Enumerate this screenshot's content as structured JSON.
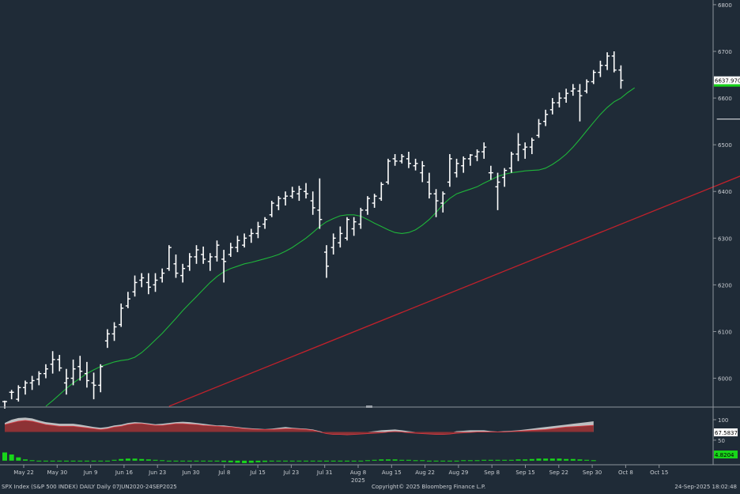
{
  "footer": {
    "left": "SPX Index (S&P 500 INDEX) DAILY  Daily 07JUN2020-24SEP2025",
    "center": "Copyright© 2025 Bloomberg Finance L.P.",
    "right": "24-Sep-2025 18:02:48",
    "year": "2025"
  },
  "colors": {
    "background": "#1f2b37",
    "price_bars": "#ffffff",
    "moving_average": "#1fb53a",
    "trendline": "#c0212b",
    "support_line": "#c8ccd0",
    "osc_fill_red": "#8a2a2d",
    "osc_fill_white": "#d9d9d9",
    "histogram": "#18d61a",
    "price_tag_bg": "#ffffff",
    "ma_tag_bg": "#18d61a"
  },
  "chart_data": [
    {
      "type": "line",
      "subtype": "ohlc-bar",
      "series": [
        {
          "name": "SPX Index",
          "kind": "ohlc"
        },
        {
          "name": "",
          "kind": "moving-average"
        }
      ],
      "ylim": [
        5940,
        6810
      ],
      "yticks": [
        6000,
        6100,
        6200,
        6300,
        6400,
        6500,
        6600,
        6700,
        6800
      ],
      "xticks": [
        "May 22",
        "May 30",
        "Jun 9",
        "Jun 16",
        "Jun 23",
        "Jun 30",
        "Jul 8",
        "Jul 15",
        "Jul 23",
        "Jul 31",
        "Aug 8",
        "Aug 15",
        "Aug 22",
        "Aug 29",
        "Sep 8",
        "Sep 15",
        "Sep 22",
        "Sep 30",
        "Oct 8",
        "Oct 15"
      ],
      "last_price_label": "6637.9702",
      "ohlc": [
        [
          5950,
          5952,
          5935,
          5950
        ],
        [
          5970,
          5975,
          5955,
          5970
        ],
        [
          5955,
          5985,
          5950,
          5980
        ],
        [
          5980,
          5995,
          5965,
          5990
        ],
        [
          5990,
          6005,
          5975,
          5995
        ],
        [
          5998,
          6015,
          5985,
          6010
        ],
        [
          6010,
          6030,
          6000,
          6020
        ],
        [
          6030,
          6058,
          6010,
          6040
        ],
        [
          6040,
          6050,
          6015,
          6022
        ],
        [
          5990,
          6020,
          5965,
          6000
        ],
        [
          6000,
          6040,
          5985,
          6020
        ],
        [
          6025,
          6048,
          5995,
          6015
        ],
        [
          6010,
          6035,
          5980,
          5995
        ],
        [
          5990,
          6012,
          5955,
          5985
        ],
        [
          5985,
          6030,
          5970,
          6025
        ],
        [
          6080,
          6105,
          6065,
          6095
        ],
        [
          6095,
          6120,
          6080,
          6110
        ],
        [
          6115,
          6160,
          6110,
          6150
        ],
        [
          6155,
          6185,
          6150,
          6170
        ],
        [
          6185,
          6220,
          6175,
          6205
        ],
        [
          6210,
          6225,
          6195,
          6215
        ],
        [
          6205,
          6225,
          6180,
          6195
        ],
        [
          6200,
          6225,
          6185,
          6210
        ],
        [
          6215,
          6235,
          6205,
          6225
        ],
        [
          6235,
          6285,
          6230,
          6280
        ],
        [
          6245,
          6265,
          6215,
          6225
        ],
        [
          6220,
          6245,
          6205,
          6235
        ],
        [
          6240,
          6268,
          6230,
          6260
        ],
        [
          6260,
          6285,
          6245,
          6275
        ],
        [
          6265,
          6282,
          6245,
          6255
        ],
        [
          6250,
          6268,
          6230,
          6260
        ],
        [
          6260,
          6295,
          6250,
          6285
        ],
        [
          6255,
          6275,
          6205,
          6250
        ],
        [
          6265,
          6290,
          6260,
          6280
        ],
        [
          6280,
          6305,
          6270,
          6295
        ],
        [
          6285,
          6310,
          6280,
          6300
        ],
        [
          6305,
          6320,
          6290,
          6310
        ],
        [
          6310,
          6335,
          6300,
          6325
        ],
        [
          6330,
          6345,
          6320,
          6340
        ],
        [
          6350,
          6380,
          6345,
          6375
        ],
        [
          6370,
          6390,
          6360,
          6385
        ],
        [
          6385,
          6400,
          6370,
          6390
        ],
        [
          6390,
          6410,
          6385,
          6400
        ],
        [
          6395,
          6412,
          6380,
          6405
        ],
        [
          6400,
          6418,
          6385,
          6395
        ],
        [
          6380,
          6400,
          6350,
          6365
        ],
        [
          6360,
          6428,
          6320,
          6340
        ],
        [
          6270,
          6285,
          6215,
          6240
        ],
        [
          6280,
          6310,
          6265,
          6300
        ],
        [
          6290,
          6325,
          6280,
          6310
        ],
        [
          6300,
          6345,
          6295,
          6340
        ],
        [
          6320,
          6345,
          6305,
          6335
        ],
        [
          6330,
          6365,
          6320,
          6360
        ],
        [
          6360,
          6390,
          6350,
          6385
        ],
        [
          6375,
          6395,
          6365,
          6390
        ],
        [
          6385,
          6420,
          6380,
          6415
        ],
        [
          6420,
          6470,
          6415,
          6465
        ],
        [
          6470,
          6480,
          6455,
          6465
        ],
        [
          6465,
          6480,
          6460,
          6475
        ],
        [
          6470,
          6485,
          6450,
          6460
        ],
        [
          6455,
          6470,
          6445,
          6460
        ],
        [
          6440,
          6465,
          6420,
          6455
        ],
        [
          6420,
          6440,
          6385,
          6395
        ],
        [
          6395,
          6405,
          6345,
          6380
        ],
        [
          6375,
          6400,
          6355,
          6395
        ],
        [
          6420,
          6480,
          6410,
          6470
        ],
        [
          6440,
          6470,
          6430,
          6460
        ],
        [
          6455,
          6475,
          6440,
          6470
        ],
        [
          6470,
          6480,
          6455,
          6478
        ],
        [
          6475,
          6490,
          6465,
          6485
        ],
        [
          6485,
          6505,
          6470,
          6495
        ],
        [
          6440,
          6455,
          6425,
          6440
        ],
        [
          6410,
          6440,
          6360,
          6420
        ],
        [
          6430,
          6450,
          6410,
          6445
        ],
        [
          6450,
          6485,
          6440,
          6480
        ],
        [
          6480,
          6525,
          6465,
          6500
        ],
        [
          6490,
          6505,
          6470,
          6495
        ],
        [
          6495,
          6515,
          6480,
          6510
        ],
        [
          6520,
          6555,
          6515,
          6545
        ],
        [
          6550,
          6575,
          6540,
          6565
        ],
        [
          6575,
          6600,
          6565,
          6590
        ],
        [
          6590,
          6612,
          6580,
          6600
        ],
        [
          6600,
          6620,
          6590,
          6610
        ],
        [
          6615,
          6630,
          6605,
          6620
        ],
        [
          6615,
          6630,
          6550,
          6605
        ],
        [
          6615,
          6640,
          6610,
          6635
        ],
        [
          6635,
          6660,
          6630,
          6655
        ],
        [
          6655,
          6680,
          6645,
          6670
        ],
        [
          6670,
          6698,
          6660,
          6690
        ],
        [
          6690,
          6700,
          6655,
          6660
        ],
        [
          6660,
          6670,
          6620,
          6638
        ]
      ],
      "moving_average": [
        5940,
        5952,
        5965,
        5978,
        5990,
        6000,
        6010,
        6018,
        6025,
        6030,
        6035,
        6038,
        6040,
        6045,
        6055,
        6068,
        6082,
        6096,
        6112,
        6128,
        6145,
        6160,
        6175,
        6190,
        6205,
        6218,
        6228,
        6235,
        6240,
        6245,
        6248,
        6252,
        6256,
        6260,
        6265,
        6272,
        6280,
        6290,
        6300,
        6312,
        6325,
        6335,
        6342,
        6348,
        6350,
        6350,
        6347,
        6340,
        6332,
        6325,
        6318,
        6312,
        6310,
        6312,
        6318,
        6328,
        6340,
        6355,
        6372,
        6385,
        6395,
        6400,
        6405,
        6410,
        6418,
        6425,
        6432,
        6437,
        6440,
        6442,
        6444,
        6445,
        6446,
        6450,
        6458,
        6468,
        6480,
        6495,
        6512,
        6530,
        6548,
        6565,
        6580,
        6592,
        6600,
        6612,
        6622
      ],
      "trendline": {
        "from": {
          "x": 24,
          "y": 5940
        },
        "to": {
          "x": 134,
          "y": 6590
        }
      },
      "support_line": {
        "from": {
          "x": 104,
          "y": 6555
        },
        "to": {
          "x": 123,
          "y": 6555
        }
      }
    },
    {
      "type": "area",
      "series": [
        {
          "name": "",
          "kind": "oscillator-white"
        },
        {
          "name": "",
          "kind": "oscillator-red"
        },
        {
          "name": "",
          "kind": "histogram"
        }
      ],
      "ylim": [
        -10,
        125
      ],
      "yticks": [
        100,
        50
      ],
      "last_value_label": "67.5837",
      "histogram_label": "4.8204",
      "white": [
        92,
        100,
        104,
        105,
        103,
        98,
        94,
        92,
        90,
        90,
        90,
        88,
        85,
        82,
        80,
        82,
        86,
        88,
        92,
        94,
        93,
        91,
        89,
        90,
        92,
        94,
        95,
        94,
        92,
        90,
        88,
        86,
        86,
        84,
        82,
        80,
        79,
        78,
        77,
        78,
        80,
        82,
        80,
        79,
        78,
        76,
        72,
        68,
        66,
        65,
        64,
        66,
        68,
        70,
        72,
        74,
        75,
        76,
        74,
        72,
        70,
        68,
        66,
        65,
        66,
        68,
        72,
        73,
        74,
        74,
        74,
        72,
        71,
        72,
        73,
        74,
        76,
        78,
        80,
        82,
        84,
        86,
        88,
        90,
        92,
        94,
        96
      ],
      "red": [
        88,
        92,
        96,
        98,
        96,
        92,
        88,
        86,
        84,
        84,
        84,
        82,
        80,
        78,
        76,
        78,
        82,
        84,
        88,
        90,
        90,
        88,
        86,
        86,
        88,
        90,
        90,
        89,
        88,
        86,
        85,
        84,
        83,
        82,
        80,
        78,
        77,
        76,
        76,
        76,
        77,
        78,
        78,
        77,
        76,
        74,
        70,
        66,
        64,
        64,
        63,
        64,
        65,
        66,
        67,
        68,
        70,
        71,
        70,
        68,
        67,
        66,
        65,
        64,
        64,
        65,
        67,
        68,
        69,
        70,
        70,
        70,
        70,
        70,
        71,
        72,
        73,
        74,
        75,
        76,
        78,
        80,
        82,
        83,
        84,
        85,
        86
      ],
      "hist": [
        20,
        15,
        8,
        3,
        1,
        0,
        0,
        0,
        -1,
        -2,
        -2,
        -1,
        0,
        0,
        0,
        0,
        2,
        4,
        5,
        5,
        4,
        3,
        2,
        1,
        0,
        0,
        0,
        0,
        -1,
        -1,
        -1,
        -2,
        -3,
        -4,
        -5,
        -6,
        -5,
        -4,
        -3,
        -2,
        -1,
        0,
        0,
        0,
        0,
        0,
        -1,
        -2,
        -2,
        -2,
        -2,
        -1,
        0,
        1,
        2,
        3,
        3,
        3,
        2,
        2,
        1,
        1,
        0,
        -1,
        -1,
        -1,
        0,
        1,
        1,
        1,
        2,
        2,
        2,
        2,
        2,
        3,
        3,
        4,
        5,
        5,
        5,
        5,
        4,
        4,
        3,
        2,
        1
      ],
      "hist_start": [
        -10,
        -8,
        -5,
        -3
      ]
    }
  ]
}
